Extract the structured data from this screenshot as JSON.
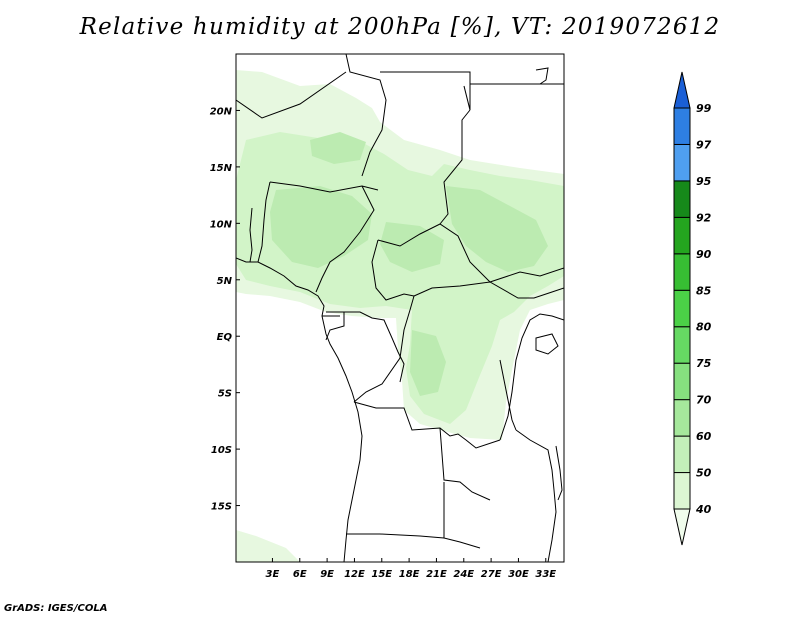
{
  "title": "Relative humidity at 200hPa [%], VT: 2019072612",
  "credit": "GrADS: IGES/COLA",
  "map": {
    "lon_range": [
      -1,
      35
    ],
    "lat_range": [
      -20,
      25
    ],
    "lon_ticks": [
      {
        "value": 3,
        "label": "3E"
      },
      {
        "value": 6,
        "label": "6E"
      },
      {
        "value": 9,
        "label": "9E"
      },
      {
        "value": 12,
        "label": "12E"
      },
      {
        "value": 15,
        "label": "15E"
      },
      {
        "value": 18,
        "label": "18E"
      },
      {
        "value": 21,
        "label": "21E"
      },
      {
        "value": 24,
        "label": "24E"
      },
      {
        "value": 27,
        "label": "27E"
      },
      {
        "value": 30,
        "label": "30E"
      },
      {
        "value": 33,
        "label": "33E"
      }
    ],
    "lat_ticks": [
      {
        "value": 20,
        "label": "20N"
      },
      {
        "value": 15,
        "label": "15N"
      },
      {
        "value": 10,
        "label": "10N"
      },
      {
        "value": 5,
        "label": "5N"
      },
      {
        "value": 0,
        "label": "EQ"
      },
      {
        "value": -5,
        "label": "5S"
      },
      {
        "value": -10,
        "label": "10S"
      },
      {
        "value": -15,
        "label": "15S"
      }
    ]
  },
  "colorbar": {
    "levels": [
      "40",
      "50",
      "60",
      "70",
      "75",
      "80",
      "85",
      "90",
      "92",
      "95",
      "97",
      "99"
    ],
    "colors": [
      "#f0fcec",
      "#dcf6d3",
      "#c3efb9",
      "#a6e89c",
      "#86e07f",
      "#66d963",
      "#4bd147",
      "#37be33",
      "#24a51f",
      "#16891a",
      "#4f9ff0",
      "#2e7fe3",
      "#1a5fd6"
    ],
    "colors_description": "bins from below 40 up to above 99"
  },
  "colors": {
    "land_border": "#000000",
    "humidity_40_50": "#e7f8e0",
    "humidity_50_60": "#d2f4c8",
    "humidity_60_70": "#bcebb1"
  }
}
